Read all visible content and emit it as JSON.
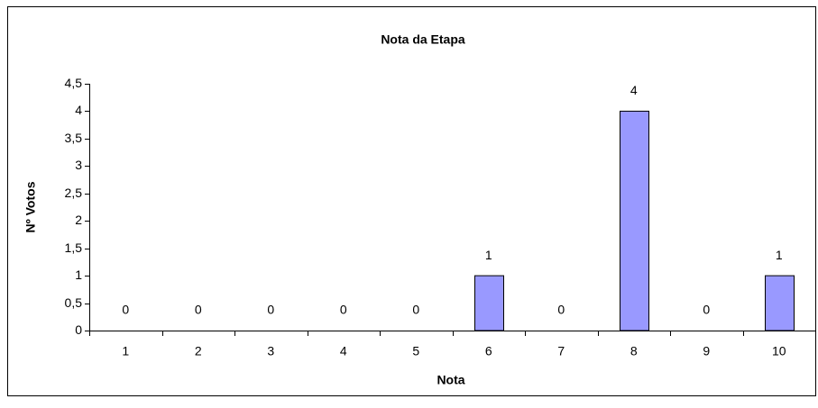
{
  "chart_data": {
    "type": "bar",
    "title": "Nota da Etapa",
    "x_label": "Nota",
    "y_label": "Nº Votos",
    "categories": [
      "1",
      "2",
      "3",
      "4",
      "5",
      "6",
      "7",
      "8",
      "9",
      "10"
    ],
    "values": [
      0,
      0,
      0,
      0,
      0,
      1,
      0,
      4,
      0,
      1
    ],
    "color": "#9999ff",
    "ylim": [
      0,
      4.5
    ],
    "yticks": [
      0,
      {
        "value": 0.5,
        "label": "0,5"
      },
      1,
      {
        "value": 1.5,
        "label": "1,5"
      },
      2,
      {
        "value": 2.5,
        "label": "2,5"
      },
      3,
      {
        "value": 3.5,
        "label": "3,5"
      },
      4,
      {
        "value": 4.5,
        "label": "4,5"
      }
    ],
    "grid": false
  }
}
